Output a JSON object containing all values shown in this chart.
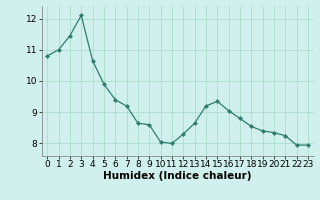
{
  "x": [
    0,
    1,
    2,
    3,
    4,
    5,
    6,
    7,
    8,
    9,
    10,
    11,
    12,
    13,
    14,
    15,
    16,
    17,
    18,
    19,
    20,
    21,
    22,
    23
  ],
  "y": [
    10.8,
    11.0,
    11.45,
    12.1,
    10.65,
    9.9,
    9.4,
    9.2,
    8.65,
    8.6,
    8.05,
    8.0,
    8.3,
    8.65,
    9.2,
    9.35,
    9.05,
    8.8,
    8.55,
    8.4,
    8.35,
    8.25,
    7.95,
    7.95
  ],
  "line_color": "#2e7d6e",
  "marker": "D",
  "markersize": 2.0,
  "bg_color": "#cff0ec",
  "grid_color": "#aaddcc",
  "xlabel": "Humidex (Indice chaleur)",
  "xlabel_fontsize": 7.5,
  "tick_fontsize": 6.5,
  "ylim": [
    7.6,
    12.4
  ],
  "xlim": [
    -0.5,
    23.5
  ],
  "yticks": [
    8,
    9,
    10,
    11,
    12
  ],
  "xticks": [
    0,
    1,
    2,
    3,
    4,
    5,
    6,
    7,
    8,
    9,
    10,
    11,
    12,
    13,
    14,
    15,
    16,
    17,
    18,
    19,
    20,
    21,
    22,
    23
  ]
}
